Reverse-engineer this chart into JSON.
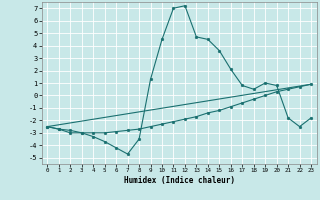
{
  "title": "",
  "xlabel": "Humidex (Indice chaleur)",
  "background_color": "#c8e8e8",
  "grid_color": "#ffffff",
  "line_color": "#1a7070",
  "xlim": [
    -0.5,
    23.5
  ],
  "ylim": [
    -5.5,
    7.5
  ],
  "yticks": [
    -5,
    -4,
    -3,
    -2,
    -1,
    0,
    1,
    2,
    3,
    4,
    5,
    6,
    7
  ],
  "xticks": [
    0,
    1,
    2,
    3,
    4,
    5,
    6,
    7,
    8,
    9,
    10,
    11,
    12,
    13,
    14,
    15,
    16,
    17,
    18,
    19,
    20,
    21,
    22,
    23
  ],
  "line1_x": [
    0,
    1,
    2,
    3,
    4,
    5,
    6,
    7,
    8,
    9,
    10,
    11,
    12,
    13,
    14,
    15,
    16,
    17,
    18,
    19,
    20,
    21,
    22,
    23
  ],
  "line1_y": [
    -2.5,
    -2.7,
    -3.0,
    -3.0,
    -3.3,
    -3.7,
    -4.2,
    -4.7,
    -3.5,
    1.3,
    4.5,
    7.0,
    7.2,
    4.7,
    4.5,
    3.6,
    2.1,
    0.8,
    0.5,
    1.0,
    0.8,
    -1.8,
    -2.5,
    -1.8
  ],
  "line2_x": [
    0,
    1,
    2,
    3,
    4,
    5,
    6,
    7,
    8,
    9,
    10,
    11,
    12,
    13,
    14,
    15,
    16,
    17,
    18,
    19,
    20,
    21,
    22,
    23
  ],
  "line2_y": [
    -2.5,
    -2.7,
    -2.8,
    -3.0,
    -3.0,
    -3.0,
    -2.9,
    -2.8,
    -2.7,
    -2.5,
    -2.3,
    -2.1,
    -1.9,
    -1.7,
    -1.4,
    -1.2,
    -0.9,
    -0.6,
    -0.3,
    0.0,
    0.3,
    0.5,
    0.7,
    0.9
  ],
  "line3_x": [
    0,
    23
  ],
  "line3_y": [
    -2.5,
    0.9
  ]
}
